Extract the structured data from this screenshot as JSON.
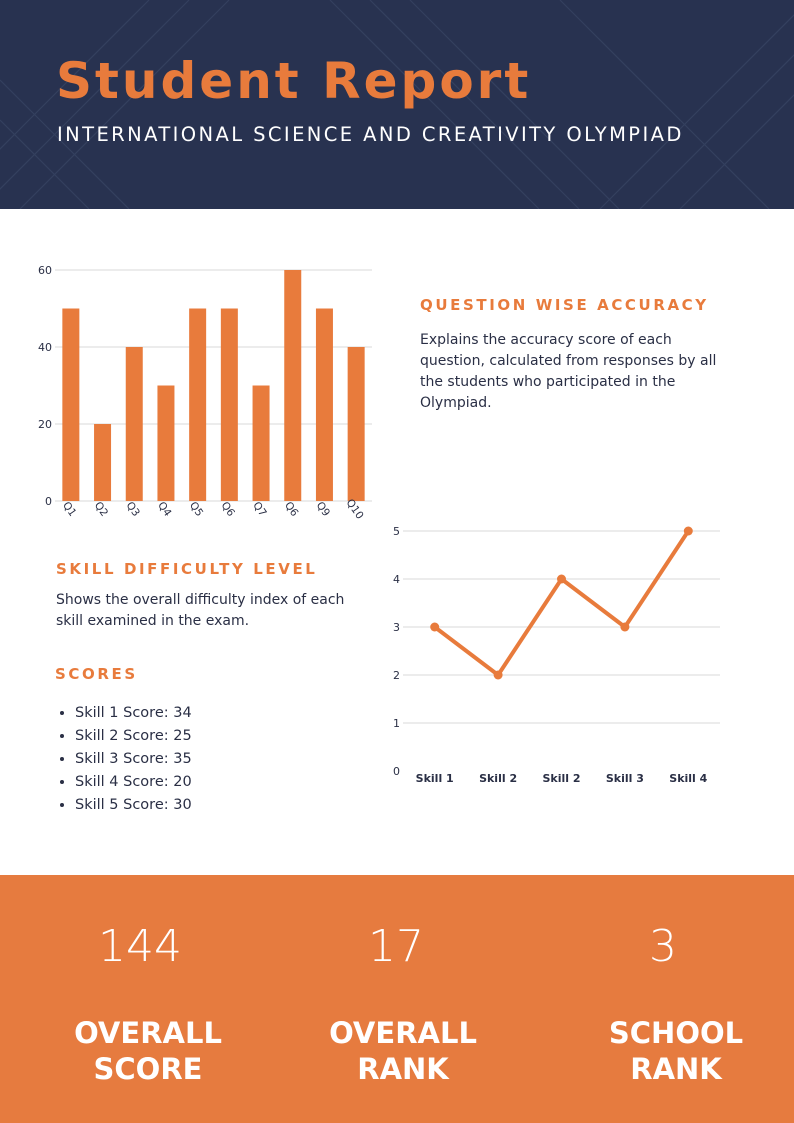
{
  "header": {
    "title": "Student Report",
    "subtitle": "INTERNATIONAL SCIENCE AND CREATIVITY OLYMPIAD"
  },
  "colors": {
    "navy": "#283250",
    "orange": "#e87b3c",
    "footer_orange": "#e67b3f",
    "grid": "#d9d9d9",
    "text": "#2a2f45"
  },
  "accuracy_section": {
    "heading": "QUESTION WISE ACCURACY",
    "text": "Explains the accuracy score of each question, calculated from responses by all the students who participated in the Olympiad."
  },
  "difficulty_section": {
    "heading": "SKILL DIFFICULTY LEVEL",
    "text": "Shows the overall difficulty index of each skill examined in the exam."
  },
  "scores_section": {
    "heading": "SCORES",
    "items": [
      "Skill 1 Score: 34",
      "Skill 2 Score: 25",
      "Skill 3 Score: 35",
      "Skill 4 Score: 20",
      "Skill 5 Score: 30"
    ]
  },
  "stats": [
    {
      "value": "144",
      "label": "OVERALL\nSCORE"
    },
    {
      "value": "17",
      "label": "OVERALL\nRANK"
    },
    {
      "value": "3",
      "label": "SCHOOL\nRANK"
    }
  ],
  "chart_data": [
    {
      "type": "bar",
      "categories": [
        "Q1",
        "Q2",
        "Q3",
        "Q4",
        "Q5",
        "Q6",
        "Q7",
        "Q6",
        "Q9",
        "Q10"
      ],
      "values": [
        50,
        20,
        40,
        30,
        50,
        50,
        30,
        60,
        50,
        40
      ],
      "title": "",
      "xlabel": "",
      "ylabel": "",
      "ylim": [
        0,
        60
      ],
      "yticks": [
        0,
        20,
        40,
        60
      ],
      "grid": true,
      "color": "#e87b3c"
    },
    {
      "type": "line",
      "categories": [
        "Skill 1",
        "Skill 2",
        "Skill 2",
        "Skill 3",
        "Skill 4"
      ],
      "values": [
        3,
        2,
        4,
        3,
        5
      ],
      "title": "",
      "xlabel": "",
      "ylabel": "",
      "ylim": [
        0,
        5
      ],
      "yticks": [
        0,
        1,
        2,
        3,
        4,
        5
      ],
      "grid": true,
      "color": "#e87b3c"
    }
  ]
}
